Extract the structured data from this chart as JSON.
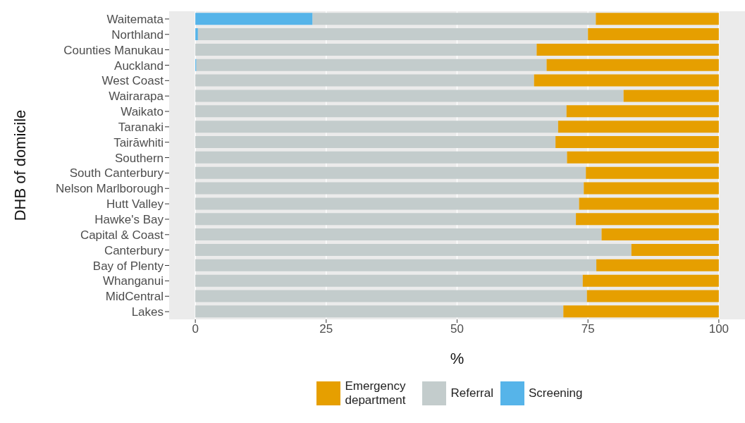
{
  "chart_data": {
    "type": "bar",
    "orientation": "horizontal",
    "stacked": true,
    "xlabel": "%",
    "ylabel": "DHB of domicile",
    "categories": [
      "Waitemata",
      "Northland",
      "Counties Manukau",
      "Auckland",
      "West Coast",
      "Wairarapa",
      "Waikato",
      "Taranaki",
      "Tairāwhiti",
      "Southern",
      "South Canterbury",
      "Nelson Marlborough",
      "Hutt Valley",
      "Hawke's Bay",
      "Capital & Coast",
      "Canterbury",
      "Bay of Plenty",
      "Whanganui",
      "MidCentral",
      "Lakes"
    ],
    "series": [
      {
        "name": "Screening",
        "color": "#56b4e9",
        "values": [
          22.4,
          0.5,
          0,
          0.2,
          0,
          0,
          0,
          0,
          0,
          0,
          0,
          0,
          0,
          0,
          0,
          0,
          0,
          0,
          0,
          0
        ]
      },
      {
        "name": "Referral",
        "color": "#c3cccc",
        "values": [
          54.1,
          74.5,
          65.2,
          66.9,
          64.7,
          81.8,
          70.9,
          69.3,
          68.8,
          71.0,
          74.6,
          74.2,
          73.3,
          72.7,
          77.6,
          83.3,
          76.6,
          74.0,
          74.8,
          70.3
        ]
      },
      {
        "name": "Emergency department",
        "color": "#e69f00",
        "values": [
          23.5,
          25.0,
          34.8,
          32.9,
          35.3,
          18.2,
          29.1,
          30.7,
          31.2,
          29.0,
          25.4,
          25.8,
          26.7,
          27.3,
          22.4,
          16.7,
          23.4,
          26.0,
          25.2,
          29.7
        ]
      }
    ],
    "xlim": [
      -5,
      105
    ],
    "xticks": [
      0,
      25,
      50,
      75,
      100
    ],
    "grid": "x",
    "legend": "bottom"
  }
}
